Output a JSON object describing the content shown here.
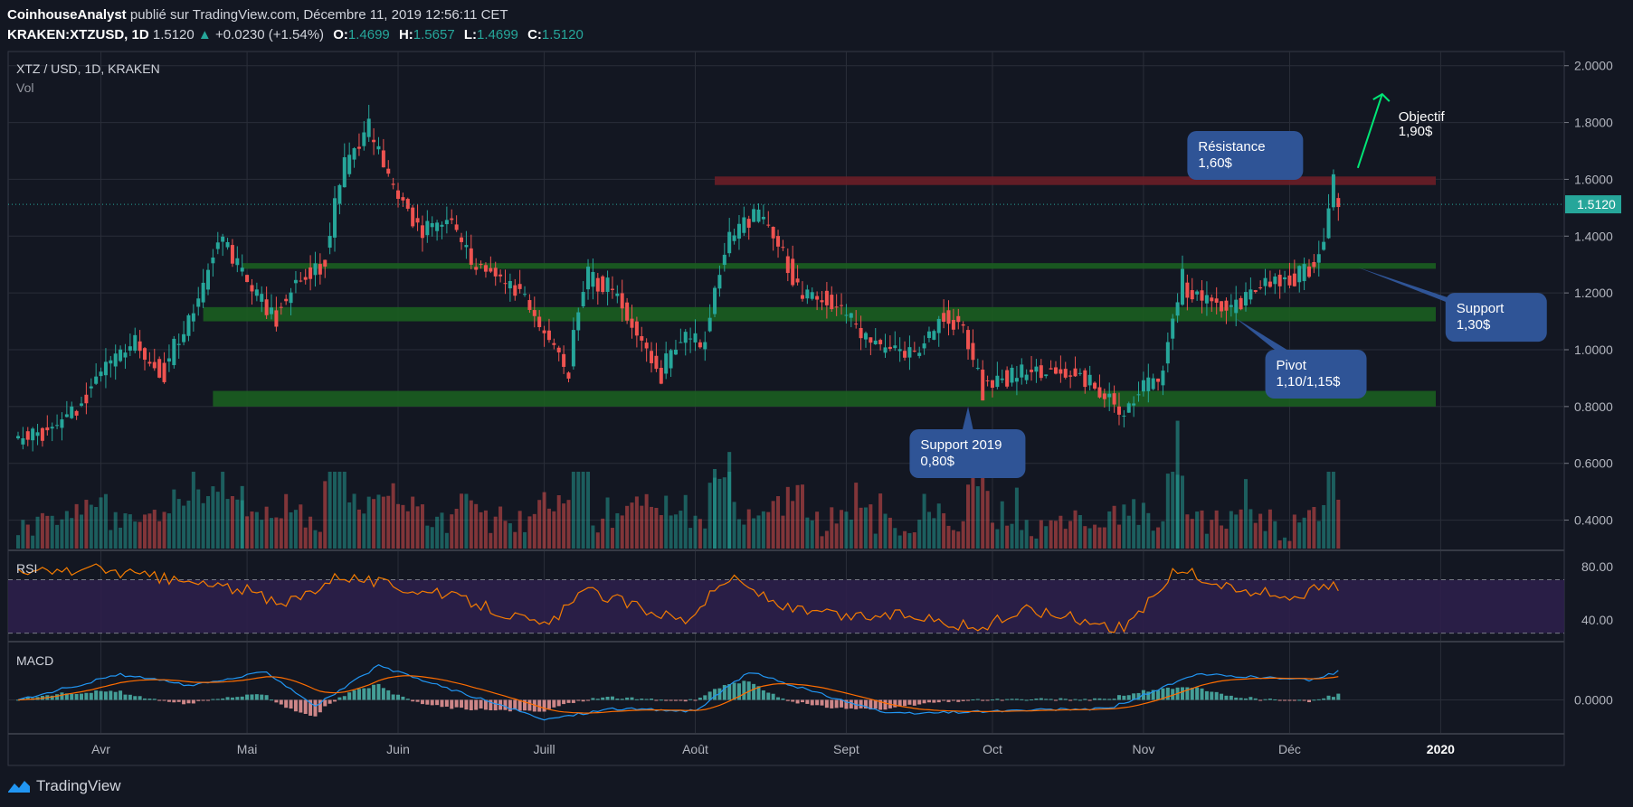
{
  "header": {
    "publisher": "CoinhouseAnalyst",
    "published_text": "publié sur TradingView.com, Décembre 11, 2019 12:56:11 CET",
    "symbol": "KRAKEN:XTZUSD, 1D",
    "last": "1.5120",
    "change_arrow": "▲",
    "change": "+0.0230 (+1.54%)",
    "open_label": "O:",
    "open": "1.4699",
    "high_label": "H:",
    "high": "1.5657",
    "low_label": "L:",
    "low": "1.4699",
    "close_label": "C:",
    "close": "1.5120"
  },
  "pane_labels": {
    "main_title": "XTZ / USD, 1D, KRAKEN",
    "volume": "Vol",
    "rsi": "RSI",
    "macd": "MACD"
  },
  "footer": {
    "brand": "TradingView",
    "logo_icon": "tradingview-logo-icon"
  },
  "colors": {
    "background": "#131722",
    "grid": "#2a2e39",
    "up": "#26a69a",
    "down": "#ef5350",
    "resistance": "#6b1e27",
    "support": "#1b5e20",
    "callout": "#2f5496",
    "rsi_line": "#f57c00",
    "rsi_band": "#2c1f4a",
    "macd_line": "#2196f3",
    "signal_line": "#ff6d00",
    "last_price_badge": "#26a69a"
  },
  "chart_data": {
    "type": "candlestick",
    "symbol": "XTZ / USD",
    "interval": "1D",
    "exchange": "KRAKEN",
    "x_axis": {
      "range": [
        "2019-03-15",
        "2019-12-31"
      ],
      "ticks": [
        {
          "label": "Avr",
          "date": "2019-04-01"
        },
        {
          "label": "Mai",
          "date": "2019-05-01"
        },
        {
          "label": "Juin",
          "date": "2019-06-01"
        },
        {
          "label": "Juill",
          "date": "2019-07-01"
        },
        {
          "label": "Août",
          "date": "2019-08-01"
        },
        {
          "label": "Sept",
          "date": "2019-09-01"
        },
        {
          "label": "Oct",
          "date": "2019-10-01"
        },
        {
          "label": "Nov",
          "date": "2019-11-01"
        },
        {
          "label": "Déc",
          "date": "2019-12-01"
        },
        {
          "label": "2020",
          "date": "2020-01-01"
        }
      ]
    },
    "price_axis": {
      "range": [
        0.3,
        2.05
      ],
      "ticks": [
        "2.0000",
        "1.8000",
        "1.6000",
        "1.4000",
        "1.2000",
        "1.0000",
        "0.8000",
        "0.6000",
        "0.4000"
      ],
      "tick_values": [
        2.0,
        1.8,
        1.6,
        1.4,
        1.2,
        1.0,
        0.8,
        0.6,
        0.4
      ],
      "last_price": 1.512,
      "last_price_label": "1.5120"
    },
    "rsi_axis": {
      "ticks": [
        "80.00",
        "40.00"
      ],
      "tick_values": [
        80,
        40
      ],
      "range": [
        25,
        90
      ],
      "bands": [
        70,
        30
      ]
    },
    "macd_axis": {
      "ticks": [
        "0.0000"
      ],
      "tick_values": [
        0
      ],
      "range": [
        -0.12,
        0.2
      ]
    },
    "anchors": [
      [
        "2019-03-15",
        0.68
      ],
      [
        "2019-03-22",
        0.72
      ],
      [
        "2019-03-28",
        0.8
      ],
      [
        "2019-04-02",
        0.95
      ],
      [
        "2019-04-08",
        1.02
      ],
      [
        "2019-04-14",
        0.92
      ],
      [
        "2019-04-20",
        1.12
      ],
      [
        "2019-04-26",
        1.4
      ],
      [
        "2019-05-02",
        1.22
      ],
      [
        "2019-05-07",
        1.12
      ],
      [
        "2019-05-12",
        1.25
      ],
      [
        "2019-05-17",
        1.3
      ],
      [
        "2019-05-21",
        1.62
      ],
      [
        "2019-05-26",
        1.78
      ],
      [
        "2019-06-01",
        1.55
      ],
      [
        "2019-06-06",
        1.42
      ],
      [
        "2019-06-12",
        1.45
      ],
      [
        "2019-06-17",
        1.3
      ],
      [
        "2019-06-22",
        1.25
      ],
      [
        "2019-06-27",
        1.2
      ],
      [
        "2019-07-02",
        1.05
      ],
      [
        "2019-07-06",
        0.92
      ],
      [
        "2019-07-10",
        1.25
      ],
      [
        "2019-07-15",
        1.22
      ],
      [
        "2019-07-19",
        1.1
      ],
      [
        "2019-07-25",
        0.92
      ],
      [
        "2019-07-30",
        1.05
      ],
      [
        "2019-08-03",
        1.02
      ],
      [
        "2019-08-08",
        1.38
      ],
      [
        "2019-08-14",
        1.48
      ],
      [
        "2019-08-19",
        1.35
      ],
      [
        "2019-08-23",
        1.2
      ],
      [
        "2019-08-28",
        1.18
      ],
      [
        "2019-09-02",
        1.12
      ],
      [
        "2019-09-06",
        1.02
      ],
      [
        "2019-09-11",
        1.0
      ],
      [
        "2019-09-16",
        0.98
      ],
      [
        "2019-09-21",
        1.12
      ],
      [
        "2019-09-25",
        1.08
      ],
      [
        "2019-09-29",
        0.88
      ],
      [
        "2019-10-03",
        0.9
      ],
      [
        "2019-10-08",
        0.92
      ],
      [
        "2019-10-14",
        0.93
      ],
      [
        "2019-10-20",
        0.9
      ],
      [
        "2019-10-24",
        0.85
      ],
      [
        "2019-10-28",
        0.78
      ],
      [
        "2019-11-01",
        0.86
      ],
      [
        "2019-11-05",
        0.9
      ],
      [
        "2019-11-09",
        1.22
      ],
      [
        "2019-11-14",
        1.18
      ],
      [
        "2019-11-19",
        1.15
      ],
      [
        "2019-11-24",
        1.2
      ],
      [
        "2019-11-28",
        1.25
      ],
      [
        "2019-12-02",
        1.25
      ],
      [
        "2019-12-05",
        1.28
      ],
      [
        "2019-12-08",
        1.35
      ],
      [
        "2019-12-10",
        1.55
      ],
      [
        "2019-12-11",
        1.51
      ]
    ],
    "rsi_anchors": [
      [
        "2019-03-15",
        75
      ],
      [
        "2019-04-01",
        78
      ],
      [
        "2019-04-15",
        70
      ],
      [
        "2019-05-01",
        62
      ],
      [
        "2019-05-08",
        50
      ],
      [
        "2019-05-20",
        74
      ],
      [
        "2019-06-01",
        65
      ],
      [
        "2019-06-15",
        55
      ],
      [
        "2019-07-01",
        35
      ],
      [
        "2019-07-10",
        62
      ],
      [
        "2019-07-22",
        48
      ],
      [
        "2019-07-30",
        40
      ],
      [
        "2019-08-08",
        72
      ],
      [
        "2019-08-20",
        48
      ],
      [
        "2019-09-01",
        42
      ],
      [
        "2019-09-15",
        44
      ],
      [
        "2019-09-28",
        33
      ],
      [
        "2019-10-08",
        48
      ],
      [
        "2019-10-20",
        40
      ],
      [
        "2019-10-28",
        33
      ],
      [
        "2019-11-08",
        78
      ],
      [
        "2019-11-20",
        62
      ],
      [
        "2019-12-01",
        58
      ],
      [
        "2019-12-11",
        66
      ]
    ],
    "macd_anchors": [
      [
        "2019-03-15",
        0.0
      ],
      [
        "2019-04-05",
        0.09
      ],
      [
        "2019-04-20",
        0.05
      ],
      [
        "2019-05-05",
        0.1
      ],
      [
        "2019-05-15",
        -0.02
      ],
      [
        "2019-05-28",
        0.12
      ],
      [
        "2019-06-15",
        0.02
      ],
      [
        "2019-07-01",
        -0.07
      ],
      [
        "2019-07-15",
        -0.03
      ],
      [
        "2019-08-01",
        -0.04
      ],
      [
        "2019-08-12",
        0.1
      ],
      [
        "2019-08-25",
        0.03
      ],
      [
        "2019-09-10",
        -0.05
      ],
      [
        "2019-10-01",
        -0.04
      ],
      [
        "2019-10-25",
        -0.03
      ],
      [
        "2019-11-12",
        0.09
      ],
      [
        "2019-11-25",
        0.08
      ],
      [
        "2019-12-05",
        0.07
      ],
      [
        "2019-12-11",
        0.1
      ]
    ],
    "volume_spikes": [
      {
        "date": "2019-11-08",
        "value": 0.75
      },
      {
        "date": "2019-08-08",
        "value": 0.64
      },
      {
        "date": "2019-08-05",
        "value": 0.58
      },
      {
        "date": "2019-04-30",
        "value": 0.52
      }
    ],
    "zones": [
      {
        "name": "resistance",
        "kind": "resistance",
        "from_date": "2019-08-05",
        "to_date": "2019-12-31",
        "low": 1.58,
        "high": 1.61
      },
      {
        "name": "support-1.30",
        "kind": "support",
        "from_date": "2019-04-30",
        "to_date": "2019-12-31",
        "low": 1.285,
        "high": 1.305
      },
      {
        "name": "pivot",
        "kind": "support",
        "from_date": "2019-04-22",
        "to_date": "2019-12-31",
        "low": 1.1,
        "high": 1.15
      },
      {
        "name": "support-2019",
        "kind": "support",
        "from_date": "2019-04-24",
        "to_date": "2019-12-31",
        "low": 0.8,
        "high": 0.855
      }
    ],
    "annotations": [
      {
        "name": "resistance",
        "lines": [
          "Résistance",
          "1,60$"
        ],
        "box_date": "2019-11-10",
        "box_price": 1.77,
        "pointer_date": "2019-11-25",
        "pointer_price": 1.6
      },
      {
        "name": "support",
        "lines": [
          "Support",
          "1,30$"
        ],
        "box_date": "2020-01-02",
        "box_price": 1.2,
        "pointer_date": "2019-12-15",
        "pointer_price": 1.29
      },
      {
        "name": "pivot",
        "lines": [
          "Pivot",
          "1,10/1,15$"
        ],
        "box_date": "2019-11-26",
        "box_price": 1.0,
        "pointer_date": "2019-11-20",
        "pointer_price": 1.11
      },
      {
        "name": "support-2019",
        "lines": [
          "Support 2019",
          "0,80$"
        ],
        "box_date": "2019-09-14",
        "box_price": 0.72,
        "pointer_date": "2019-09-26",
        "pointer_price": 0.8
      }
    ],
    "target": {
      "lines": [
        "Objectif",
        "1,90$"
      ],
      "from_date": "2019-12-15",
      "from_price": 1.64,
      "to_date": "2019-12-20",
      "to_price": 1.9
    }
  }
}
